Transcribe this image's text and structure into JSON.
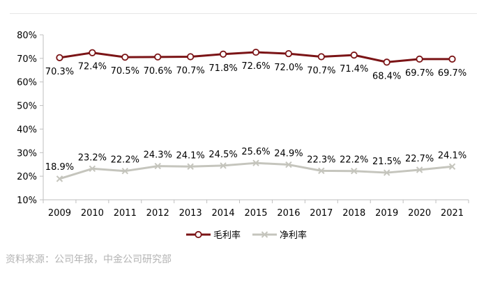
{
  "chart_data": {
    "type": "line",
    "categories": [
      "2009",
      "2010",
      "2011",
      "2012",
      "2013",
      "2014",
      "2015",
      "2016",
      "2017",
      "2018",
      "2019",
      "2020",
      "2021"
    ],
    "series": [
      {
        "name": "毛利率",
        "values": [
          70.3,
          72.4,
          70.5,
          70.6,
          70.7,
          71.8,
          72.6,
          72.0,
          70.7,
          71.4,
          68.4,
          69.7,
          69.7
        ],
        "labels": [
          "70.3%",
          "72.4%",
          "70.5%",
          "70.6%",
          "70.7%",
          "71.8%",
          "72.6%",
          "72.0%",
          "70.7%",
          "71.4%",
          "68.4%",
          "69.7%",
          "69.7%"
        ],
        "color": "#7b1416",
        "marker": "circle"
      },
      {
        "name": "净利率",
        "values": [
          18.9,
          23.2,
          22.2,
          24.3,
          24.1,
          24.5,
          25.6,
          24.9,
          22.3,
          22.2,
          21.5,
          22.7,
          24.1
        ],
        "labels": [
          "18.9%",
          "23.2%",
          "22.2%",
          "24.3%",
          "24.1%",
          "24.5%",
          "25.6%",
          "24.9%",
          "22.3%",
          "22.2%",
          "21.5%",
          "22.7%",
          "24.1%"
        ],
        "color": "#c5c5bd",
        "marker": "x"
      }
    ],
    "ylim": [
      10,
      80
    ],
    "yticks": [
      "10%",
      "20%",
      "30%",
      "40%",
      "50%",
      "60%",
      "70%",
      "80%"
    ],
    "legend_position": "bottom-center",
    "grid": false
  },
  "source_note": "资料来源：公司年报，中金公司研究部"
}
